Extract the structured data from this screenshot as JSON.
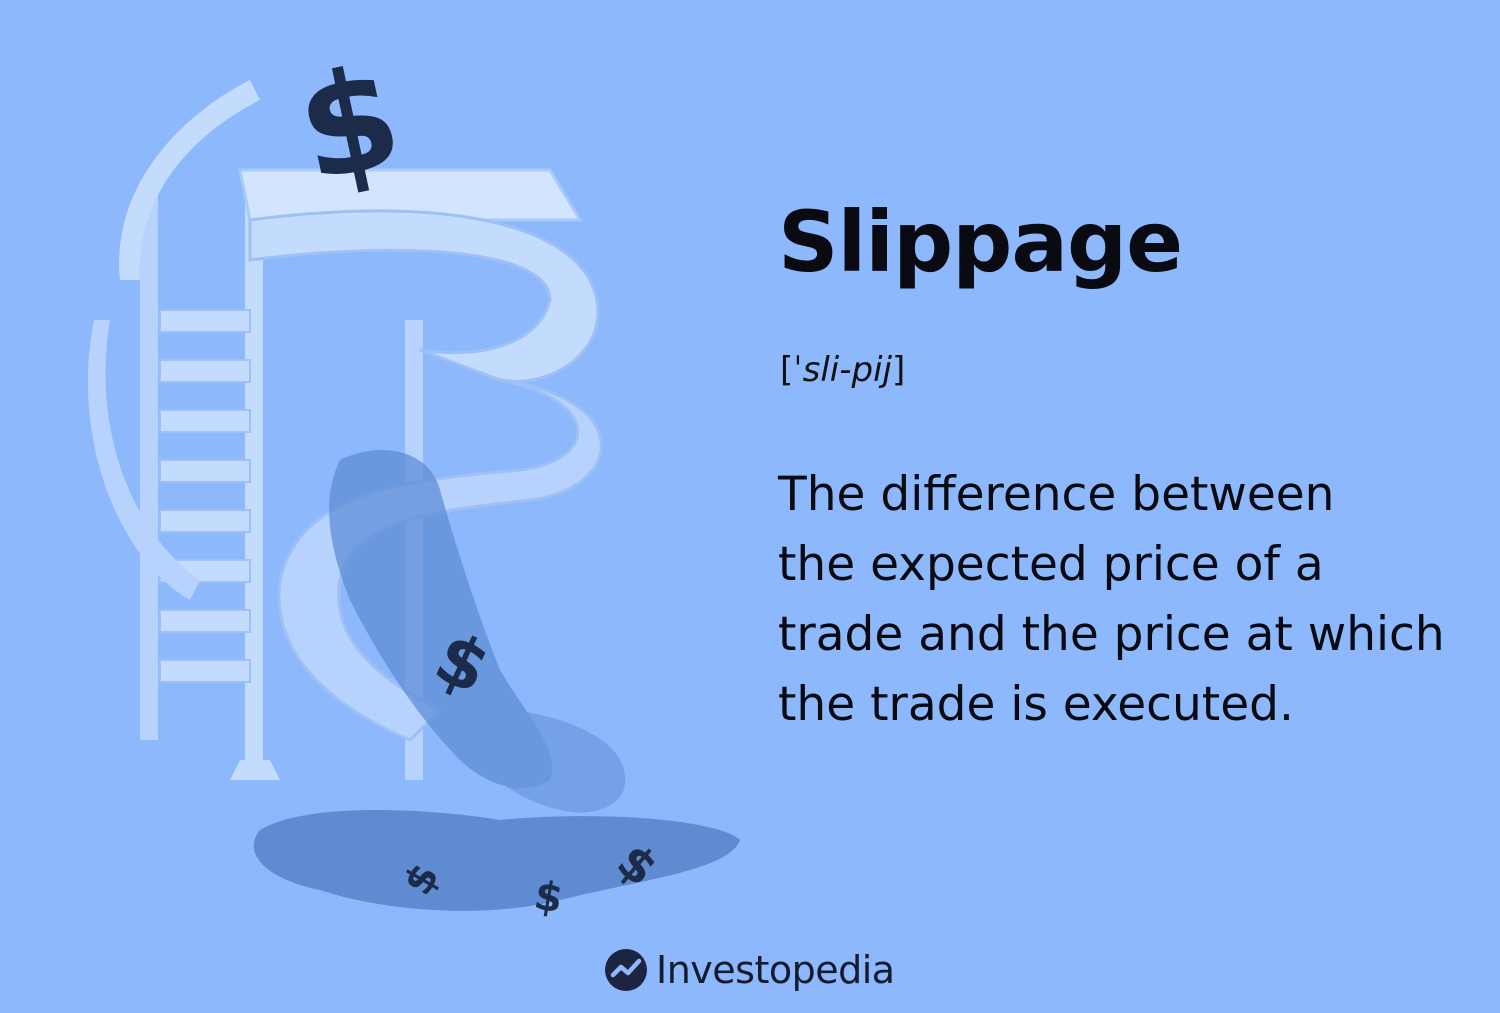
{
  "card": {
    "term": "Slippage",
    "pronunciation": {
      "open": "[",
      "text": "ˈsli-pij",
      "close": "]"
    },
    "definition_lines": [
      "The difference between",
      "the expected price of a",
      "trade and the price at which",
      "the trade is executed."
    ]
  },
  "brand": {
    "name": "Investopedia",
    "logo_icon": "investopedia-logo-icon"
  },
  "illustration": {
    "subject": "slide-with-dollar-signs-illustration"
  },
  "colors": {
    "background": "#8db8fb",
    "slide_light": "#c3dcfd",
    "slide_mid": "#a9c9fb",
    "splash": "#5f8dd6",
    "puddle": "#5a86cc",
    "dollar_dark": "#1d2b4a",
    "text": "#0a0a12"
  }
}
